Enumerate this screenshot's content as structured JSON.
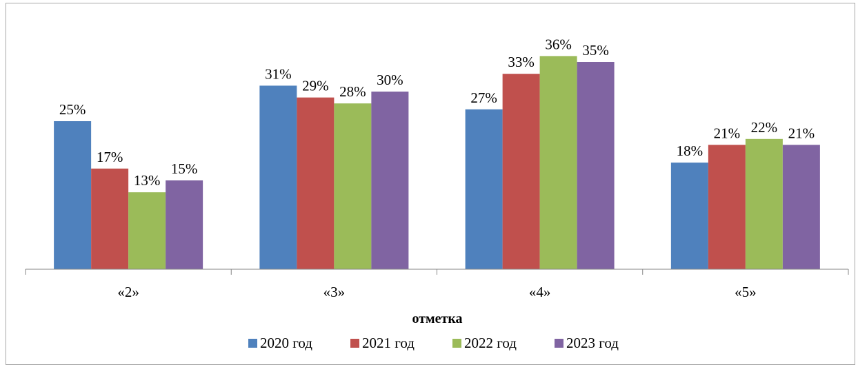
{
  "chart_data": {
    "type": "bar",
    "categories": [
      "«2»",
      "«3»",
      "«4»",
      "«5»"
    ],
    "series": [
      {
        "name": "2020 год",
        "color": "#4f81bd",
        "values": [
          25,
          31,
          27,
          18
        ]
      },
      {
        "name": "2021 год",
        "color": "#c0504d",
        "values": [
          17,
          29,
          33,
          21
        ]
      },
      {
        "name": "2022 год",
        "color": "#9bbb59",
        "values": [
          13,
          28,
          36,
          22
        ]
      },
      {
        "name": "2023 год",
        "color": "#8064a2",
        "values": [
          15,
          30,
          35,
          21
        ]
      }
    ],
    "value_suffix": "%",
    "xlabel": "отметка",
    "ylabel": "",
    "ylim": [
      0,
      40
    ],
    "grid": false,
    "legend_position": "bottom"
  }
}
